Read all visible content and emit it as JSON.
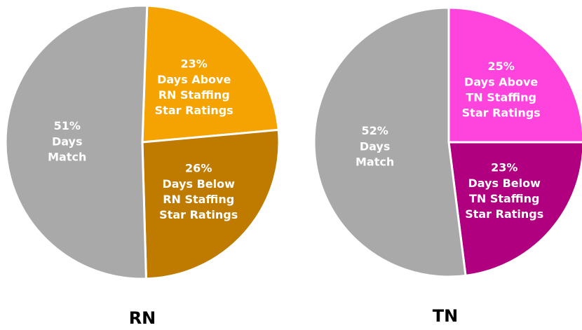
{
  "chart_data": [
    {
      "type": "pie",
      "title": "RN",
      "categories": [
        "Days Above\nRN Staffing\nStar Ratings",
        "Days Below\nRN Staffing\nStar Ratings",
        "Days\nMatch"
      ],
      "values": [
        23,
        26,
        51
      ],
      "value_labels": [
        "23%",
        "26%",
        "51%"
      ],
      "colors": [
        "#f5a300",
        "#bf7a00",
        "#a9a9a9"
      ]
    },
    {
      "type": "pie",
      "title": "TN",
      "categories": [
        "Days Above\nTN Staffing\nStar Ratings",
        "Days Below\nTN Staffing\nStar Ratings",
        "Days\nMatch"
      ],
      "values": [
        25,
        23,
        52
      ],
      "value_labels": [
        "25%",
        "23%",
        "52%"
      ],
      "colors": [
        "#ff44dd",
        "#b0007f",
        "#a9a9a9"
      ]
    }
  ]
}
